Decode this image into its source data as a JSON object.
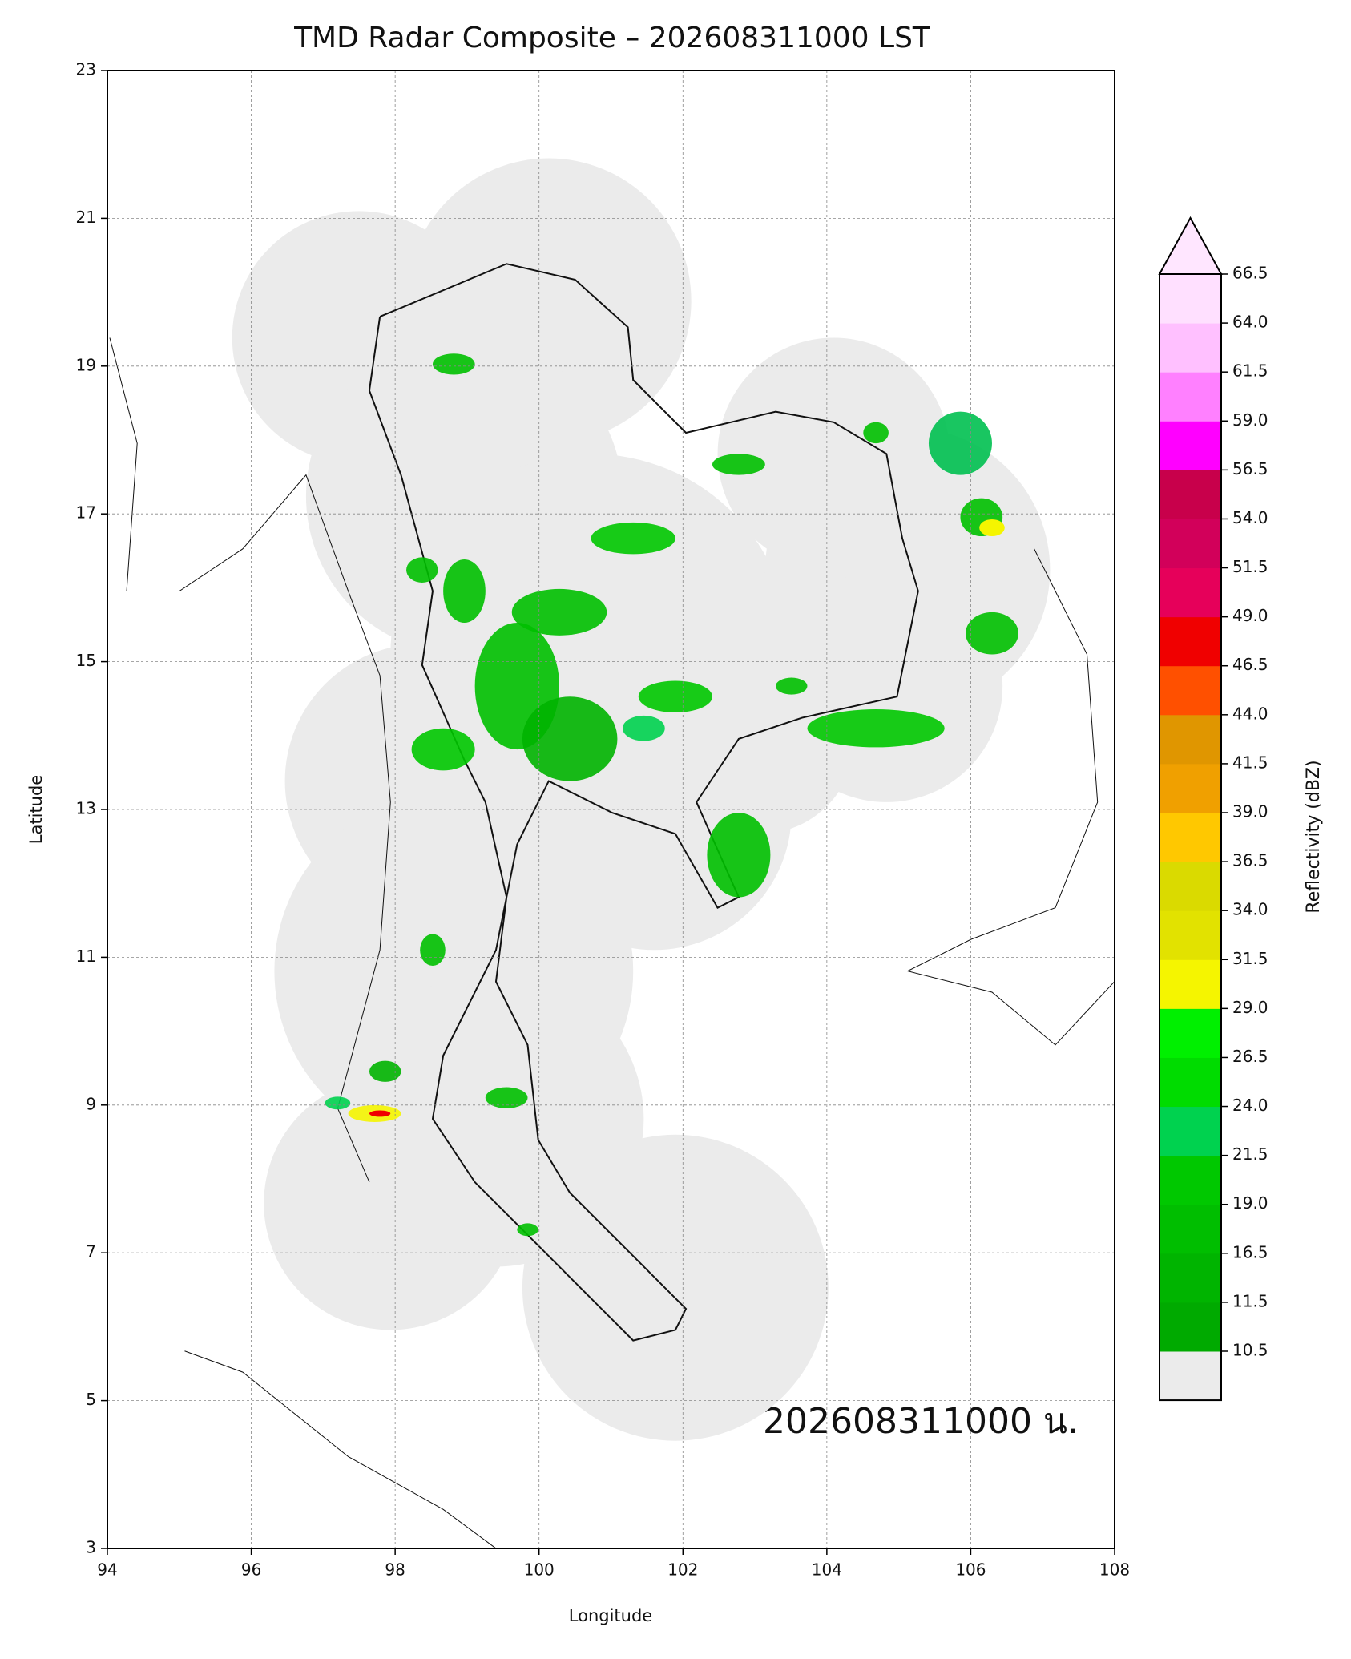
{
  "chart_data": {
    "type": "radar-map",
    "title": "TMD Radar Composite – 202608311000 LST",
    "xlabel": "Longitude",
    "ylabel": "Latitude",
    "xlim": [
      94,
      108
    ],
    "ylim": [
      3,
      23
    ],
    "xticks": [
      94,
      96,
      98,
      100,
      102,
      104,
      106,
      108
    ],
    "yticks": [
      3,
      5,
      7,
      9,
      11,
      13,
      15,
      17,
      19,
      21,
      23
    ],
    "grid": true,
    "annotation": "202608311000 น.",
    "colorbar": {
      "label": "Reflectivity (dBZ)",
      "levels": [
        10.5,
        11.5,
        16.5,
        {
          "value": 19,
          "label": "19.0"
        },
        21.5,
        {
          "value": 24,
          "label": "24.0"
        },
        26.5,
        {
          "value": 29,
          "label": "29.0"
        },
        31.5,
        {
          "value": 34,
          "label": "34.0"
        },
        36.5,
        {
          "value": 39,
          "label": "39.0"
        },
        41.5,
        {
          "value": 44,
          "label": "44.0"
        },
        46.5,
        {
          "value": 49,
          "label": "49.0"
        },
        51.5,
        {
          "value": 54,
          "label": "54.0"
        },
        56.5,
        {
          "value": 59,
          "label": "59.0"
        },
        61.5,
        {
          "value": 64,
          "label": "64.0"
        },
        66.5
      ],
      "colors": [
        "#00aa00",
        "#00b400",
        "#00be00",
        "#00c800",
        "#00d24f",
        "#00dc00",
        "#00f000",
        "#f5f500",
        "#e2e200",
        "#dada00",
        "#ffc800",
        "#f0a000",
        "#e09600",
        "#ff5000",
        "#f00000",
        "#e6005a",
        "#d2005a",
        "#c8004b",
        "#ff00ff",
        "#ff80ff",
        "#ffc0ff",
        "#ffe0ff"
      ],
      "under_color": "#ebebeb",
      "over_color": "#ffe6ff"
    }
  }
}
